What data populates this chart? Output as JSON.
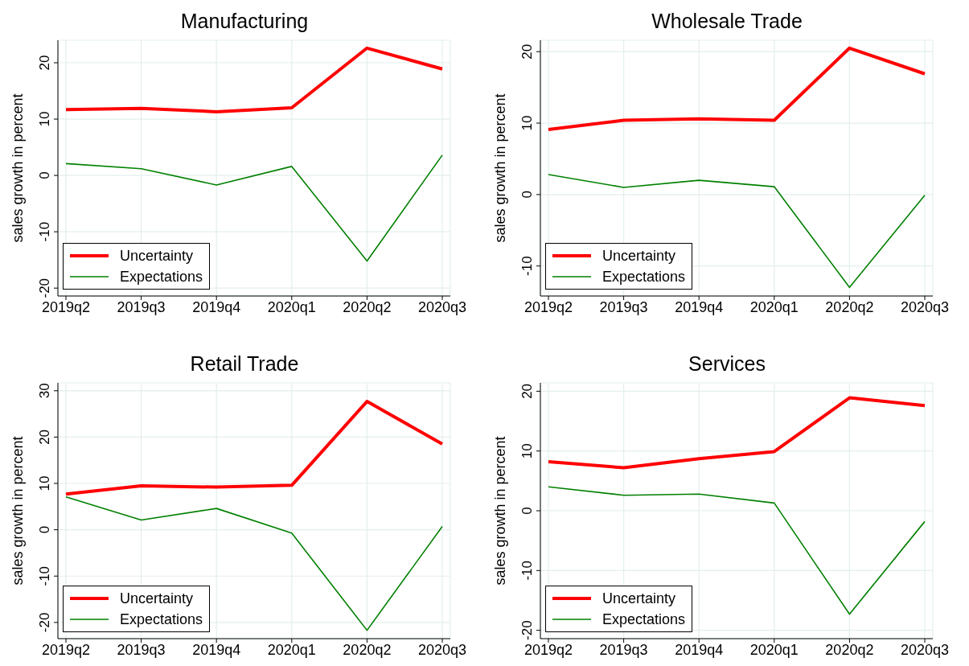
{
  "chart_data": [
    {
      "type": "line",
      "title": "Manufacturing",
      "ylabel": "sales growth in percent",
      "categories": [
        "2019q2",
        "2019q3",
        "2019q4",
        "2020q1",
        "2020q2",
        "2020q3"
      ],
      "ylim": [
        -21.4,
        24
      ],
      "yticks": [
        -20,
        -10,
        0,
        10,
        20
      ],
      "grid": true,
      "legend": "bottom left",
      "marker": "none",
      "series": [
        {
          "name": "Uncertainty",
          "color": "#ff0000",
          "values": [
            11.7,
            11.9,
            11.3,
            12.0,
            22.6,
            18.9
          ]
        },
        {
          "name": "Expectations",
          "color": "#008000",
          "values": [
            2.1,
            1.2,
            -1.7,
            1.6,
            -15.2,
            3.6
          ]
        }
      ]
    },
    {
      "type": "line",
      "title": "Wholesale Trade",
      "ylabel": "sales growth in percent",
      "categories": [
        "2019q2",
        "2019q3",
        "2019q4",
        "2020q1",
        "2020q2",
        "2020q3"
      ],
      "ylim": [
        -14.2,
        21.6
      ],
      "yticks": [
        -10,
        0,
        10,
        20
      ],
      "grid": true,
      "legend": "bottom left",
      "marker": "none",
      "series": [
        {
          "name": "Uncertainty",
          "color": "#ff0000",
          "values": [
            9.1,
            10.4,
            10.6,
            10.4,
            20.5,
            16.9
          ]
        },
        {
          "name": "Expectations",
          "color": "#008000",
          "values": [
            2.8,
            1.0,
            2.0,
            1.1,
            -13.0,
            -0.1
          ]
        }
      ]
    },
    {
      "type": "line",
      "title": "Retail Trade",
      "ylabel": "sales growth in percent",
      "categories": [
        "2019q2",
        "2019q3",
        "2019q4",
        "2020q1",
        "2020q2",
        "2020q3"
      ],
      "ylim": [
        -23.5,
        31.7
      ],
      "yticks": [
        -20,
        -10,
        0,
        10,
        20,
        30
      ],
      "grid": true,
      "legend": "bottom left",
      "marker": "none",
      "series": [
        {
          "name": "Uncertainty",
          "color": "#ff0000",
          "values": [
            7.7,
            9.5,
            9.2,
            9.6,
            27.7,
            18.5
          ]
        },
        {
          "name": "Expectations",
          "color": "#008000",
          "values": [
            7.1,
            2.1,
            4.6,
            -0.7,
            -21.7,
            0.7
          ]
        }
      ]
    },
    {
      "type": "line",
      "title": "Services",
      "ylabel": "sales growth in percent",
      "categories": [
        "2019q2",
        "2019q3",
        "2019q4",
        "2020q1",
        "2020q2",
        "2020q3"
      ],
      "ylim": [
        -21.4,
        21.4
      ],
      "yticks": [
        -20,
        -10,
        0,
        10,
        20
      ],
      "grid": true,
      "legend": "bottom left",
      "marker": "none",
      "series": [
        {
          "name": "Uncertainty",
          "color": "#ff0000",
          "values": [
            8.2,
            7.2,
            8.7,
            9.9,
            18.9,
            17.6
          ]
        },
        {
          "name": "Expectations",
          "color": "#008000",
          "values": [
            4.0,
            2.6,
            2.8,
            1.3,
            -17.3,
            -1.8
          ]
        }
      ]
    }
  ]
}
